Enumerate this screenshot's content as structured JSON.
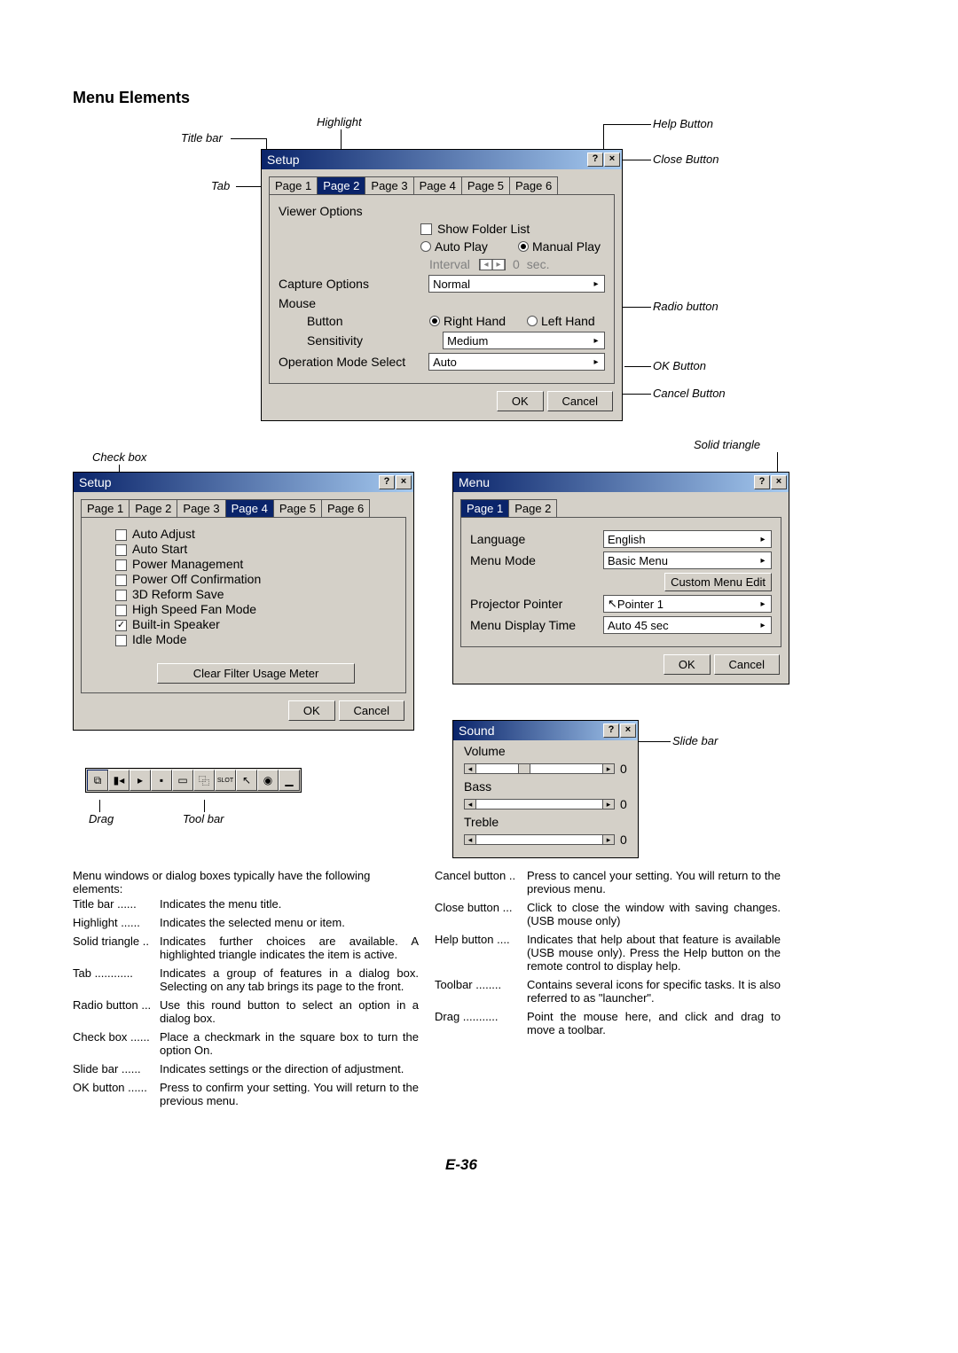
{
  "section_title": "Menu Elements",
  "page_number": "E-36",
  "callouts": {
    "titlebar": "Title bar",
    "tab": "Tab",
    "highlight": "Highlight",
    "help": "Help Button",
    "close": "Close Button",
    "radio": "Radio button",
    "ok": "OK Button",
    "cancel": "Cancel Button",
    "checkbox": "Check box",
    "solidtri": "Solid triangle",
    "drag": "Drag",
    "toolbar": "Tool bar",
    "slidebar": "Slide bar"
  },
  "setup1": {
    "title": "Setup",
    "tabs": [
      "Page 1",
      "Page 2",
      "Page 3",
      "Page 4",
      "Page 5",
      "Page 6"
    ],
    "active_tab": 1,
    "viewer_options": "Viewer Options",
    "show_folder": "Show Folder List",
    "auto_play": "Auto Play",
    "manual_play": "Manual Play",
    "interval": "Interval",
    "interval_val": "0",
    "interval_unit": "sec.",
    "capture": "Capture Options",
    "capture_val": "Normal",
    "mouse": "Mouse",
    "button": "Button",
    "right": "Right Hand",
    "left": "Left Hand",
    "sensitivity": "Sensitivity",
    "sens_val": "Medium",
    "opmode": "Operation Mode Select",
    "opmode_val": "Auto",
    "ok": "OK",
    "cancel": "Cancel"
  },
  "setup2": {
    "title": "Setup",
    "tabs": [
      "Page 1",
      "Page 2",
      "Page 3",
      "Page 4",
      "Page 5",
      "Page 6"
    ],
    "active_tab": 3,
    "items": [
      {
        "label": "Auto Adjust",
        "checked": false
      },
      {
        "label": "Auto Start",
        "checked": false
      },
      {
        "label": "Power Management",
        "checked": false
      },
      {
        "label": "Power Off Confirmation",
        "checked": false
      },
      {
        "label": "3D Reform Save",
        "checked": false
      },
      {
        "label": "High Speed Fan Mode",
        "checked": false
      },
      {
        "label": "Built-in Speaker",
        "checked": true
      },
      {
        "label": "Idle Mode",
        "checked": false
      }
    ],
    "clear_filter": "Clear Filter Usage Meter",
    "ok": "OK",
    "cancel": "Cancel"
  },
  "menu1": {
    "title": "Menu",
    "tabs": [
      "Page 1",
      "Page 2"
    ],
    "active_tab": 0,
    "language": "Language",
    "language_val": "English",
    "mode": "Menu Mode",
    "mode_val": "Basic Menu",
    "custom": "Custom Menu Edit",
    "pointer": "Projector Pointer",
    "pointer_val": "Pointer 1",
    "display": "Menu Display Time",
    "display_val": "Auto 45 sec",
    "ok": "OK",
    "cancel": "Cancel"
  },
  "sound": {
    "title": "Sound",
    "vol": "Volume",
    "bass": "Bass",
    "treb": "Treble",
    "val": "0"
  },
  "intro": "Menu windows or dialog boxes typically have the following elements:",
  "defs_left": [
    {
      "t": "Title bar",
      "d": "Indicates the menu title."
    },
    {
      "t": "Highlight",
      "d": "Indicates the selected menu or item."
    },
    {
      "t": "Solid triangle",
      "d": "Indicates further choices are available. A highlighted triangle indicates the item is active."
    },
    {
      "t": "Tab",
      "d": "Indicates a group of features in a dialog box. Selecting on any tab brings its page to the front."
    },
    {
      "t": "Radio button",
      "d": "Use this round button to select an option in a dialog box."
    },
    {
      "t": "Check box",
      "d": "Place a checkmark in the square box to turn the option On."
    },
    {
      "t": "Slide bar",
      "d": "Indicates settings or the direction of adjustment."
    },
    {
      "t": "OK button",
      "d": "Press to confirm your setting. You will return to the previous menu."
    }
  ],
  "defs_right": [
    {
      "t": "Cancel button",
      "d": "Press to cancel your setting. You will return to the previous menu."
    },
    {
      "t": "Close button",
      "d": "Click to close the window with saving changes. (USB mouse only)"
    },
    {
      "t": "Help button",
      "d": "Indicates that help about that feature is available (USB mouse only). Press the Help button on the remote control to display help."
    },
    {
      "t": "Toolbar",
      "d": "Contains several icons for specific tasks. It is also referred to as \"launcher\"."
    },
    {
      "t": "Drag",
      "d": "Point the mouse here, and click and drag to move a toolbar."
    }
  ]
}
